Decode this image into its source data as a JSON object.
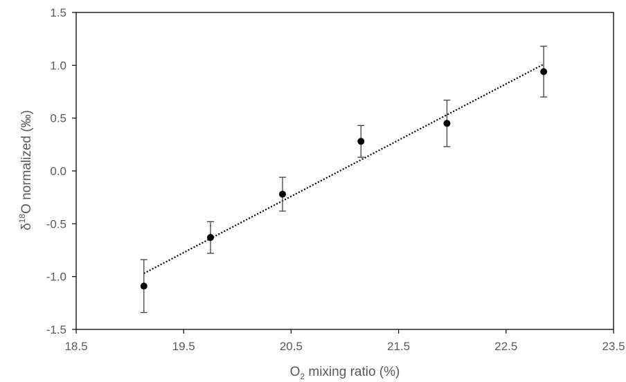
{
  "chart_data": {
    "type": "scatter",
    "xlabel": "O2 mixing ratio (%)",
    "ylabel": "δ18O normalized (‰)",
    "xlabel_parts": {
      "pre": "O",
      "sub": "2",
      "post": " mixing ratio (%)"
    },
    "ylabel_parts": {
      "pre": "δ",
      "sup": "18",
      "post": "O normalized (‰)"
    },
    "xlim": [
      18.5,
      23.5
    ],
    "ylim": [
      -1.5,
      1.5
    ],
    "x_ticks": [
      "18.5",
      "19.5",
      "20.5",
      "21.5",
      "22.5",
      "23.5"
    ],
    "y_ticks": [
      "1.5",
      "1.0",
      "0.5",
      "0.0",
      "-0.5",
      "-1.0",
      "-1.5"
    ],
    "grid": false,
    "series": [
      {
        "x": [
          19.13,
          19.75,
          20.42,
          21.15,
          21.95,
          22.85
        ],
        "y": [
          -1.09,
          -0.63,
          -0.22,
          0.28,
          0.45,
          0.94
        ],
        "error": [
          0.25,
          0.15,
          0.16,
          0.15,
          0.22,
          0.24
        ],
        "color": "#000000"
      }
    ],
    "trendline": {
      "style": "dotted",
      "x": [
        19.13,
        22.85
      ],
      "y": [
        -0.97,
        1.01
      ],
      "color": "#000000"
    }
  }
}
